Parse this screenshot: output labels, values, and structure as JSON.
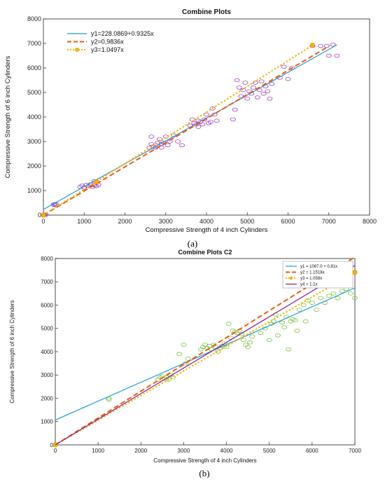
{
  "captions": {
    "a": "(a)",
    "b": "(b)"
  },
  "chart_data": [
    {
      "type": "scatter",
      "title": "Combine Plots",
      "xlabel": "Compressive Strength of 4 inch Cylinders",
      "ylabel": "Compressive Strength of 6 inch Cylinders",
      "xlim": [
        0,
        8000
      ],
      "ylim": [
        0,
        8000
      ],
      "xticks": [
        0,
        1000,
        2000,
        3000,
        4000,
        5000,
        6000,
        7000,
        8000
      ],
      "yticks": [
        0,
        1000,
        2000,
        3000,
        4000,
        5000,
        6000,
        7000,
        8000
      ],
      "grid": false,
      "legend_position": "top-left",
      "marker_color": "#9b3fbf",
      "lines": [
        {
          "name": "y1=228.0869+0.9325x",
          "intercept": 228.0869,
          "slope": 0.9325,
          "x_range": [
            0,
            7200
          ],
          "color": "#1f9ad6",
          "style": "solid"
        },
        {
          "name": "y2=0,9836x",
          "intercept": 0,
          "slope": 0.9836,
          "x_range": [
            0,
            7000
          ],
          "color": "#f05a0f",
          "style": "dashed"
        },
        {
          "name": "y3=1.0497x",
          "intercept": 0,
          "slope": 1.0497,
          "x_range": [
            0,
            6600
          ],
          "color": "#f2b705",
          "style": "dotted",
          "markers_at_x": [
            0,
            1300,
            6600
          ]
        }
      ],
      "points": [
        [
          0,
          0
        ],
        [
          30,
          20
        ],
        [
          60,
          10
        ],
        [
          250,
          420
        ],
        [
          270,
          450
        ],
        [
          300,
          400
        ],
        [
          320,
          440
        ],
        [
          900,
          1150
        ],
        [
          950,
          1200
        ],
        [
          1000,
          1120
        ],
        [
          1050,
          1230
        ],
        [
          1100,
          1180
        ],
        [
          1150,
          1250
        ],
        [
          1200,
          1150
        ],
        [
          1250,
          1220
        ],
        [
          1300,
          1180
        ],
        [
          1350,
          1230
        ],
        [
          1250,
          1380
        ],
        [
          2600,
          2750
        ],
        [
          2650,
          2900
        ],
        [
          2700,
          2800
        ],
        [
          2750,
          2750
        ],
        [
          2800,
          2950
        ],
        [
          2850,
          3100
        ],
        [
          2900,
          2900
        ],
        [
          2950,
          2950
        ],
        [
          3000,
          3200
        ],
        [
          3050,
          2850
        ],
        [
          3100,
          3000
        ],
        [
          3200,
          3250
        ],
        [
          3300,
          3000
        ],
        [
          3400,
          2850
        ],
        [
          2650,
          3200
        ],
        [
          2900,
          2750
        ],
        [
          3600,
          3650
        ],
        [
          3650,
          3900
        ],
        [
          3700,
          3750
        ],
        [
          3750,
          3700
        ],
        [
          3800,
          3850
        ],
        [
          3850,
          3800
        ],
        [
          3900,
          3700
        ],
        [
          3950,
          3900
        ],
        [
          4000,
          4100
        ],
        [
          4050,
          3750
        ],
        [
          4100,
          3800
        ],
        [
          4150,
          4350
        ],
        [
          4200,
          4100
        ],
        [
          4250,
          3850
        ],
        [
          3800,
          3600
        ],
        [
          4700,
          4300
        ],
        [
          4750,
          5500
        ],
        [
          4800,
          5200
        ],
        [
          4850,
          4850
        ],
        [
          4900,
          5100
        ],
        [
          4950,
          5400
        ],
        [
          5000,
          4750
        ],
        [
          5050,
          5050
        ],
        [
          5100,
          4950
        ],
        [
          5150,
          5200
        ],
        [
          5200,
          5400
        ],
        [
          5250,
          4800
        ],
        [
          5300,
          5100
        ],
        [
          5350,
          5450
        ],
        [
          5400,
          4950
        ],
        [
          5450,
          5250
        ],
        [
          5500,
          5050
        ],
        [
          5550,
          4750
        ],
        [
          5600,
          5350
        ],
        [
          4650,
          3900
        ],
        [
          5800,
          5600
        ],
        [
          5900,
          6050
        ],
        [
          6000,
          5550
        ],
        [
          6100,
          6000
        ],
        [
          6600,
          6900
        ],
        [
          6800,
          6900
        ],
        [
          6950,
          6900
        ],
        [
          7000,
          6500
        ],
        [
          7100,
          6950
        ],
        [
          7200,
          6500
        ]
      ]
    },
    {
      "type": "scatter",
      "title": "Combine Plots C2",
      "xlabel": "Compressive Strength of 4 inch Cylinders",
      "ylabel": "Compressive Strength of 6 inch Cylinders",
      "xlim": [
        0,
        7000
      ],
      "ylim": [
        0,
        8000
      ],
      "xticks": [
        0,
        1000,
        2000,
        3000,
        4000,
        5000,
        6000,
        7000
      ],
      "yticks": [
        0,
        1000,
        2000,
        3000,
        4000,
        5000,
        6000,
        7000,
        8000
      ],
      "grid": false,
      "legend_position": "top-right",
      "marker_color": "#7cc242",
      "lines": [
        {
          "name": "y1 = 1067.0 + 0.81x",
          "intercept": 1067.0,
          "slope": 0.81,
          "x_range": [
            0,
            7000
          ],
          "color": "#1f9ad6",
          "style": "solid"
        },
        {
          "name": "y2 = 1.1518x",
          "intercept": 0,
          "slope": 1.1518,
          "x_range": [
            0,
            7000
          ],
          "color": "#f05a0f",
          "style": "dashed"
        },
        {
          "name": "y3 = 1.058x",
          "intercept": 0,
          "slope": 1.058,
          "x_range": [
            0,
            7000
          ],
          "color": "#f2b705",
          "style": "dotted",
          "markers_at_x": [
            0,
            7000
          ]
        },
        {
          "name": "y4 = 1.1x",
          "intercept": 0,
          "slope": 1.1,
          "x_range": [
            0,
            7000
          ],
          "color": "#8b1a8b",
          "style": "solid"
        }
      ],
      "points": [
        [
          0,
          0
        ],
        [
          1250,
          1950
        ],
        [
          1250,
          2000
        ],
        [
          2400,
          2800
        ],
        [
          2450,
          2900
        ],
        [
          2500,
          2950
        ],
        [
          2550,
          2850
        ],
        [
          2600,
          2900
        ],
        [
          2650,
          2800
        ],
        [
          2700,
          3000
        ],
        [
          2750,
          2900
        ],
        [
          2900,
          3900
        ],
        [
          3000,
          4300
        ],
        [
          3050,
          3500
        ],
        [
          3100,
          3700
        ],
        [
          3400,
          4100
        ],
        [
          3450,
          4200
        ],
        [
          3500,
          4300
        ],
        [
          3550,
          4150
        ],
        [
          3600,
          4250
        ],
        [
          3650,
          4100
        ],
        [
          3700,
          4300
        ],
        [
          3750,
          4200
        ],
        [
          3800,
          4000
        ],
        [
          3850,
          4150
        ],
        [
          3900,
          4250
        ],
        [
          3950,
          4350
        ],
        [
          4000,
          4200
        ],
        [
          4050,
          5200
        ],
        [
          4100,
          4600
        ],
        [
          4150,
          4900
        ],
        [
          4200,
          4850
        ],
        [
          4250,
          4800
        ],
        [
          4300,
          4900
        ],
        [
          4350,
          4750
        ],
        [
          4400,
          4500
        ],
        [
          4450,
          4300
        ],
        [
          4500,
          4200
        ],
        [
          4550,
          4400
        ],
        [
          4600,
          4650
        ],
        [
          4800,
          4800
        ],
        [
          4900,
          5000
        ],
        [
          5000,
          4500
        ],
        [
          5050,
          5200
        ],
        [
          5100,
          5300
        ],
        [
          5150,
          5600
        ],
        [
          5200,
          4700
        ],
        [
          5300,
          5250
        ],
        [
          5350,
          5050
        ],
        [
          5400,
          5500
        ],
        [
          5450,
          4100
        ],
        [
          5500,
          5300
        ],
        [
          5550,
          5400
        ],
        [
          5600,
          5350
        ],
        [
          5650,
          4900
        ],
        [
          5700,
          5800
        ],
        [
          5800,
          6000
        ],
        [
          5850,
          5300
        ],
        [
          5900,
          6200
        ],
        [
          6000,
          6100
        ],
        [
          6100,
          5800
        ],
        [
          6200,
          6300
        ],
        [
          6300,
          6100
        ],
        [
          6400,
          6400
        ],
        [
          6500,
          6500
        ],
        [
          6600,
          6300
        ],
        [
          6700,
          6600
        ],
        [
          6800,
          6700
        ],
        [
          6900,
          6500
        ],
        [
          7000,
          6300
        ]
      ]
    }
  ]
}
